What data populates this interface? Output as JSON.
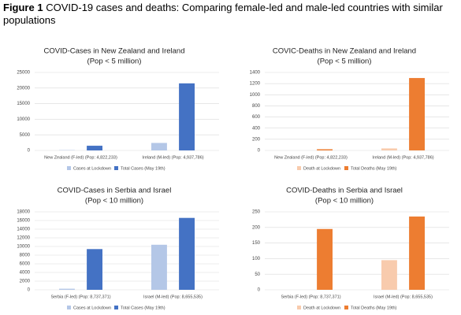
{
  "figure_label": "Figure 1",
  "caption": "COVID-19 cases and deaths: Comparing female-led and male-led countries with similar populations",
  "chart_data": [
    {
      "type": "bar",
      "title": "COVID-Cases in New Zealand and Ireland",
      "subtitle": "(Pop < 5 million)",
      "categories": [
        "New Zealand (F-led) (Pop: 4,822,233)",
        "Ireland (M-led) (Pop: 4,937,786)"
      ],
      "series": [
        {
          "name": "Cases at Lockdown",
          "color": "#b4c7e7",
          "values": [
            100,
            2400
          ]
        },
        {
          "name": "Total Cases (May 19th)",
          "color": "#4472c4",
          "values": [
            1500,
            21500
          ]
        }
      ],
      "ylim": [
        0,
        25000
      ],
      "yticks": [
        0,
        5000,
        10000,
        15000,
        20000,
        25000
      ],
      "grid": true
    },
    {
      "type": "bar",
      "title": "COVIC-Deaths in New Zealand and Ireland",
      "subtitle": "(Pop < 5 million)",
      "categories": [
        "New Zealand (F-led) (Pop: 4,822,233)",
        "Ireland (M-led) (Pop: 4,937,786)"
      ],
      "series": [
        {
          "name": "Death at Lockdown",
          "color": "#f8cbad",
          "values": [
            0,
            36
          ]
        },
        {
          "name": "Total Deaths (May 19th)",
          "color": "#ed7d31",
          "values": [
            21,
            1300
          ]
        }
      ],
      "ylim": [
        0,
        1400
      ],
      "yticks": [
        0,
        200,
        400,
        600,
        800,
        1000,
        1200,
        1400
      ],
      "grid": true
    },
    {
      "type": "bar",
      "title": "COVID-Cases in Serbia and Israel",
      "subtitle": "(Pop < 10 million)",
      "categories": [
        "Serbia (F-led) (Pop: 8,737,371)",
        "Israel (M-led) (Pop: 8,655,535)"
      ],
      "series": [
        {
          "name": "Cases at Lockdown",
          "color": "#b4c7e7",
          "values": [
            250,
            10400
          ]
        },
        {
          "name": "Total Cases (May 19th)",
          "color": "#4472c4",
          "values": [
            9400,
            16600
          ]
        }
      ],
      "ylim": [
        0,
        18000
      ],
      "yticks": [
        0,
        2000,
        4000,
        6000,
        8000,
        10000,
        12000,
        14000,
        16000,
        18000
      ],
      "grid": true
    },
    {
      "type": "bar",
      "title": "COVID-Deaths in Serbia and Israel",
      "subtitle": "(Pop < 10 million)",
      "categories": [
        "Serbia (F-led) (Pop: 8,737,371)",
        "Israel (M-led) (Pop: 8,655,535)"
      ],
      "series": [
        {
          "name": "Death at Lockdown",
          "color": "#f8cbad",
          "values": [
            0,
            95
          ]
        },
        {
          "name": "Total Deaths (May 19th)",
          "color": "#ed7d31",
          "values": [
            195,
            235
          ]
        }
      ],
      "ylim": [
        0,
        250
      ],
      "yticks": [
        0,
        50,
        100,
        150,
        200,
        250
      ],
      "grid": true
    }
  ]
}
